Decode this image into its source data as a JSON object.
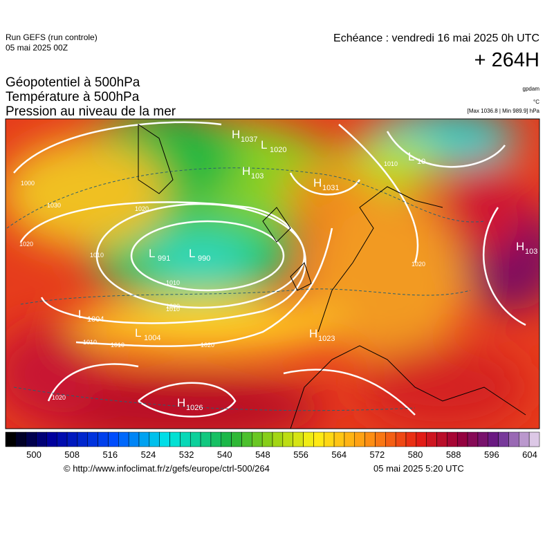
{
  "header": {
    "run": "Run GEFS (run controle)",
    "run_date": "05 mai 2025 00Z",
    "echeance": "Echéance : vendredi 16 mai 2025 0h UTC",
    "lead": "+ 264H",
    "title_lines": [
      "Géopotentiel à 500hPa",
      "Température à 500hPa",
      "Pression au niveau de la mer"
    ],
    "unit_geo": "gpdam",
    "unit_temp": "°C",
    "pressure_range": "[Max 1036.8 | Min 989.9] hPa"
  },
  "centers": [
    {
      "letter": "H",
      "value": "1037"
    },
    {
      "letter": "L",
      "value": "1020"
    },
    {
      "letter": "H",
      "value": "103"
    },
    {
      "letter": "H",
      "value": "1031"
    },
    {
      "letter": "L",
      "value": "10"
    },
    {
      "letter": "H",
      "value": "103"
    },
    {
      "letter": "L",
      "value": "991"
    },
    {
      "letter": "L",
      "value": "990"
    },
    {
      "letter": "L",
      "value": "1004"
    },
    {
      "letter": "L",
      "value": "1004"
    },
    {
      "letter": "H",
      "value": "1023"
    },
    {
      "letter": "H",
      "value": "1026"
    }
  ],
  "isobar_labels": [
    "1000",
    "1030",
    "1020",
    "1010",
    "1020",
    "1010",
    "1000",
    "1010",
    "1010",
    "1020",
    "1020",
    "1010",
    "1010",
    "1020"
  ],
  "colorbar_ticks": [
    500,
    508,
    516,
    524,
    532,
    540,
    548,
    556,
    564,
    572,
    580,
    588,
    596,
    604
  ],
  "footer": {
    "url": "© http://www.infoclimat.fr/z/gefs/europe/ctrl-500/264",
    "generated": "05 mai 2025  5:20 UTC"
  }
}
